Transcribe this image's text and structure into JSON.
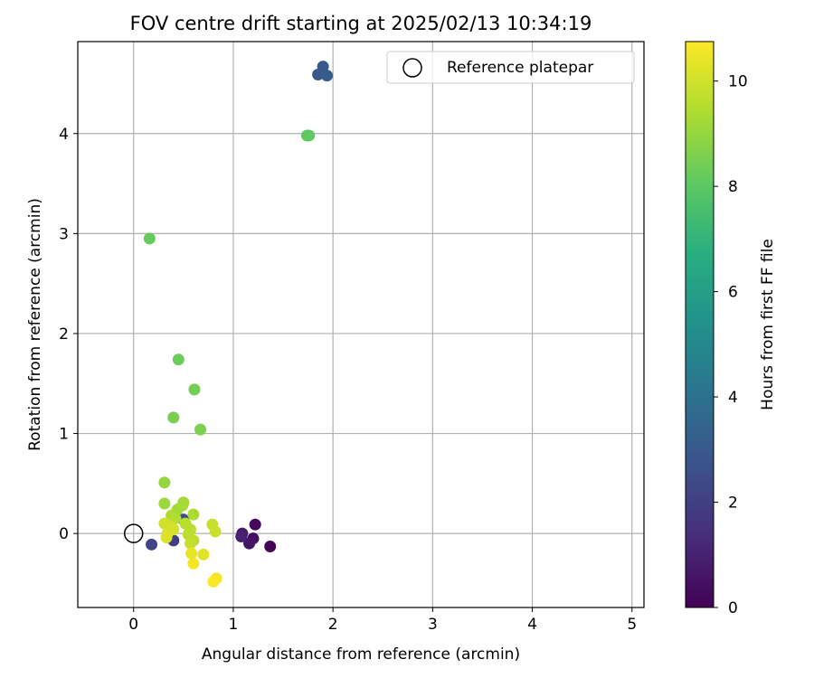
{
  "chart_data": {
    "type": "scatter",
    "title": "FOV centre drift starting at 2025/02/13 10:34:19",
    "xlabel": "Angular distance from reference (arcmin)",
    "ylabel": "Rotation from reference (arcmin)",
    "xlim": [
      -0.56,
      5.12
    ],
    "ylim": [
      -0.74,
      4.92
    ],
    "xticks": [
      0,
      1,
      2,
      3,
      4,
      5
    ],
    "yticks": [
      0,
      1,
      2,
      3,
      4
    ],
    "grid": true,
    "legend": {
      "position": "top-right",
      "entries": [
        "Reference platepar"
      ]
    },
    "reference_point": {
      "x": 0,
      "y": 0
    },
    "colorbar": {
      "label": "Hours from first FF file",
      "colormap": "viridis",
      "range": [
        0,
        10.75
      ],
      "ticks": [
        0,
        2,
        4,
        6,
        8,
        10
      ]
    },
    "points": [
      {
        "x": 1.37,
        "y": -0.13,
        "h": 0.1
      },
      {
        "x": 1.22,
        "y": 0.09,
        "h": 0.2
      },
      {
        "x": 1.2,
        "y": -0.05,
        "h": 0.4
      },
      {
        "x": 1.16,
        "y": -0.1,
        "h": 0.6
      },
      {
        "x": 1.09,
        "y": 0.0,
        "h": 0.8
      },
      {
        "x": 1.08,
        "y": -0.03,
        "h": 1.0
      },
      {
        "x": 0.4,
        "y": -0.07,
        "h": 2.0
      },
      {
        "x": 0.18,
        "y": -0.11,
        "h": 2.2
      },
      {
        "x": 0.5,
        "y": 0.14,
        "h": 2.5
      },
      {
        "x": 1.85,
        "y": 4.59,
        "h": 2.9
      },
      {
        "x": 1.9,
        "y": 4.67,
        "h": 3.0
      },
      {
        "x": 1.94,
        "y": 4.58,
        "h": 3.1
      },
      {
        "x": 1.74,
        "y": 3.98,
        "h": 8.0
      },
      {
        "x": 1.76,
        "y": 3.98,
        "h": 8.1
      },
      {
        "x": 0.16,
        "y": 2.95,
        "h": 8.2
      },
      {
        "x": 0.45,
        "y": 1.74,
        "h": 8.3
      },
      {
        "x": 0.61,
        "y": 1.44,
        "h": 8.4
      },
      {
        "x": 0.4,
        "y": 1.16,
        "h": 8.5
      },
      {
        "x": 0.67,
        "y": 1.04,
        "h": 8.6
      },
      {
        "x": 0.31,
        "y": 0.51,
        "h": 9.0
      },
      {
        "x": 0.31,
        "y": 0.3,
        "h": 9.1
      },
      {
        "x": 0.5,
        "y": 0.31,
        "h": 9.2
      },
      {
        "x": 0.44,
        "y": 0.24,
        "h": 9.2
      },
      {
        "x": 0.49,
        "y": 0.28,
        "h": 9.3
      },
      {
        "x": 0.38,
        "y": 0.18,
        "h": 9.4
      },
      {
        "x": 0.6,
        "y": 0.19,
        "h": 9.4
      },
      {
        "x": 0.42,
        "y": 0.15,
        "h": 9.5
      },
      {
        "x": 0.52,
        "y": 0.1,
        "h": 9.6
      },
      {
        "x": 0.57,
        "y": 0.04,
        "h": 9.6
      },
      {
        "x": 0.55,
        "y": -0.01,
        "h": 9.7
      },
      {
        "x": 0.6,
        "y": -0.07,
        "h": 9.7
      },
      {
        "x": 0.57,
        "y": -0.1,
        "h": 9.8
      },
      {
        "x": 0.79,
        "y": 0.09,
        "h": 9.8
      },
      {
        "x": 0.82,
        "y": 0.02,
        "h": 9.9
      },
      {
        "x": 0.31,
        "y": 0.1,
        "h": 10.0
      },
      {
        "x": 0.37,
        "y": 0.07,
        "h": 10.0
      },
      {
        "x": 0.4,
        "y": 0.04,
        "h": 10.1
      },
      {
        "x": 0.34,
        "y": 0.0,
        "h": 10.1
      },
      {
        "x": 0.33,
        "y": -0.04,
        "h": 10.2
      },
      {
        "x": 0.7,
        "y": -0.21,
        "h": 10.3
      },
      {
        "x": 0.58,
        "y": -0.2,
        "h": 10.4
      },
      {
        "x": 0.6,
        "y": -0.3,
        "h": 10.6
      },
      {
        "x": 0.83,
        "y": -0.45,
        "h": 10.6
      },
      {
        "x": 0.8,
        "y": -0.48,
        "h": 10.7
      }
    ]
  }
}
